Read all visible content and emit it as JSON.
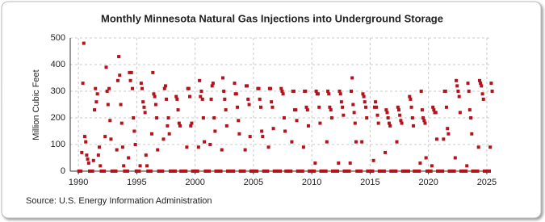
{
  "chart_data": {
    "type": "scatter",
    "title": "Monthly Minnesota Natural Gas Injections into Underground Storage",
    "y_label": "Million Cubic Feet",
    "source": "Source: U.S. Energy Information Administration",
    "color": "#b5121b",
    "grid": true,
    "xlim": [
      1989.3,
      2025.35
    ],
    "xticks": [
      1990,
      1995,
      2000,
      2005,
      2010,
      2015,
      2020,
      2025
    ],
    "ylim": [
      0,
      500
    ],
    "yticks": [
      0,
      100,
      200,
      300,
      400,
      500
    ],
    "x": [
      1990.04,
      1990.13,
      1990.21,
      1990.29,
      1990.38,
      1990.46,
      1990.54,
      1990.63,
      1990.71,
      1990.79,
      1990.88,
      1990.96,
      1991.04,
      1991.13,
      1991.21,
      1991.29,
      1991.38,
      1991.46,
      1991.54,
      1991.63,
      1991.71,
      1991.79,
      1991.88,
      1991.96,
      1992.04,
      1992.13,
      1992.21,
      1992.29,
      1992.38,
      1992.46,
      1992.54,
      1992.63,
      1992.71,
      1992.79,
      1992.88,
      1992.96,
      1993.04,
      1993.13,
      1993.21,
      1993.29,
      1993.38,
      1993.46,
      1993.54,
      1993.63,
      1993.71,
      1993.79,
      1993.88,
      1993.96,
      1994.04,
      1994.13,
      1994.21,
      1994.29,
      1994.38,
      1994.46,
      1994.54,
      1994.63,
      1994.71,
      1994.79,
      1994.88,
      1994.96,
      1995.04,
      1995.13,
      1995.21,
      1995.29,
      1995.38,
      1995.46,
      1995.54,
      1995.63,
      1995.71,
      1995.79,
      1995.88,
      1995.96,
      1996.04,
      1996.13,
      1996.21,
      1996.29,
      1996.38,
      1996.46,
      1996.54,
      1996.63,
      1996.71,
      1996.79,
      1996.88,
      1996.96,
      1997.04,
      1997.13,
      1997.21,
      1997.29,
      1997.38,
      1997.46,
      1997.54,
      1997.63,
      1997.71,
      1997.79,
      1997.88,
      1997.96,
      1998.04,
      1998.13,
      1998.21,
      1998.29,
      1998.38,
      1998.46,
      1998.54,
      1998.63,
      1998.71,
      1998.79,
      1998.88,
      1998.96,
      1999.04,
      1999.13,
      1999.21,
      1999.29,
      1999.38,
      1999.46,
      1999.54,
      1999.63,
      1999.71,
      1999.79,
      1999.88,
      1999.96,
      2000.04,
      2000.13,
      2000.21,
      2000.29,
      2000.38,
      2000.46,
      2000.54,
      2000.63,
      2000.71,
      2000.79,
      2000.88,
      2000.96,
      2001.04,
      2001.13,
      2001.21,
      2001.29,
      2001.38,
      2001.46,
      2001.54,
      2001.63,
      2001.71,
      2001.79,
      2001.88,
      2001.96,
      2002.04,
      2002.13,
      2002.21,
      2002.29,
      2002.38,
      2002.46,
      2002.54,
      2002.63,
      2002.71,
      2002.79,
      2002.88,
      2002.96,
      2003.04,
      2003.13,
      2003.21,
      2003.29,
      2003.38,
      2003.46,
      2003.54,
      2003.63,
      2003.71,
      2003.79,
      2003.88,
      2003.96,
      2004.04,
      2004.13,
      2004.21,
      2004.29,
      2004.38,
      2004.46,
      2004.54,
      2004.63,
      2004.71,
      2004.79,
      2004.88,
      2004.96,
      2005.04,
      2005.13,
      2005.21,
      2005.29,
      2005.38,
      2005.46,
      2005.54,
      2005.63,
      2005.71,
      2005.79,
      2005.88,
      2005.96,
      2006.04,
      2006.13,
      2006.21,
      2006.29,
      2006.38,
      2006.46,
      2006.54,
      2006.63,
      2006.71,
      2006.79,
      2006.88,
      2006.96,
      2007.04,
      2007.13,
      2007.21,
      2007.29,
      2007.38,
      2007.46,
      2007.54,
      2007.63,
      2007.71,
      2007.79,
      2007.88,
      2007.96,
      2008.04,
      2008.13,
      2008.21,
      2008.29,
      2008.38,
      2008.46,
      2008.54,
      2008.63,
      2008.71,
      2008.79,
      2008.88,
      2008.96,
      2009.04,
      2009.13,
      2009.21,
      2009.29,
      2009.38,
      2009.46,
      2009.54,
      2009.63,
      2009.71,
      2009.79,
      2009.88,
      2009.96,
      2010.04,
      2010.13,
      2010.21,
      2010.29,
      2010.38,
      2010.46,
      2010.54,
      2010.63,
      2010.71,
      2010.79,
      2010.88,
      2010.96,
      2011.04,
      2011.13,
      2011.21,
      2011.29,
      2011.38,
      2011.46,
      2011.54,
      2011.63,
      2011.71,
      2011.79,
      2011.88,
      2011.96,
      2012.04,
      2012.13,
      2012.21,
      2012.29,
      2012.38,
      2012.46,
      2012.54,
      2012.63,
      2012.71,
      2012.79,
      2012.88,
      2012.96,
      2013.04,
      2013.13,
      2013.21,
      2013.29,
      2013.38,
      2013.46,
      2013.54,
      2013.63,
      2013.71,
      2013.79,
      2013.88,
      2013.96,
      2014.04,
      2014.13,
      2014.21,
      2014.29,
      2014.38,
      2014.46,
      2014.54,
      2014.63,
      2014.71,
      2014.79,
      2014.88,
      2014.96,
      2015.04,
      2015.13,
      2015.21,
      2015.29,
      2015.38,
      2015.46,
      2015.54,
      2015.63,
      2015.71,
      2015.79,
      2015.88,
      2015.96,
      2016.04,
      2016.13,
      2016.21,
      2016.29,
      2016.38,
      2016.46,
      2016.54,
      2016.63,
      2016.71,
      2016.79,
      2016.88,
      2016.96,
      2017.04,
      2017.13,
      2017.21,
      2017.29,
      2017.38,
      2017.46,
      2017.54,
      2017.63,
      2017.71,
      2017.79,
      2017.88,
      2017.96,
      2018.04,
      2018.13,
      2018.21,
      2018.29,
      2018.38,
      2018.46,
      2018.54,
      2018.63,
      2018.71,
      2018.79,
      2018.88,
      2018.96,
      2019.04,
      2019.13,
      2019.21,
      2019.29,
      2019.38,
      2019.46,
      2019.54,
      2019.63,
      2019.71,
      2019.79,
      2019.88,
      2019.96,
      2020.04,
      2020.13,
      2020.21,
      2020.29,
      2020.38,
      2020.46,
      2020.54,
      2020.63,
      2020.71,
      2020.79,
      2020.88,
      2020.96,
      2021.04,
      2021.13,
      2021.21,
      2021.29,
      2021.38,
      2021.46,
      2021.54,
      2021.63,
      2021.71,
      2021.79,
      2021.88,
      2021.96,
      2022.04,
      2022.13,
      2022.21,
      2022.29,
      2022.38,
      2022.46,
      2022.54,
      2022.63,
      2022.71,
      2022.79,
      2022.88,
      2022.96,
      2023.04,
      2023.13,
      2023.21,
      2023.29,
      2023.38,
      2023.46,
      2023.54,
      2023.63,
      2023.71,
      2023.79,
      2023.88,
      2023.96,
      2024.04,
      2024.13,
      2024.21,
      2024.29,
      2024.38,
      2024.46,
      2024.54,
      2024.63,
      2024.71,
      2024.79,
      2024.88,
      2024.96,
      2025.04,
      2025.13,
      2025.21,
      2025.29,
      2025.38,
      2025.46
    ],
    "values": [
      0,
      0,
      0,
      70,
      330,
      480,
      130,
      110,
      60,
      45,
      30,
      0,
      0,
      0,
      0,
      40,
      230,
      310,
      260,
      290,
      60,
      90,
      20,
      0,
      0,
      0,
      0,
      130,
      390,
      300,
      250,
      310,
      190,
      120,
      0,
      0,
      0,
      0,
      0,
      80,
      340,
      430,
      360,
      250,
      180,
      90,
      20,
      0,
      0,
      0,
      0,
      50,
      370,
      340,
      370,
      310,
      200,
      150,
      100,
      0,
      0,
      0,
      0,
      20,
      330,
      310,
      260,
      240,
      220,
      60,
      20,
      0,
      0,
      0,
      0,
      140,
      370,
      290,
      280,
      250,
      200,
      80,
      0,
      0,
      0,
      0,
      0,
      120,
      310,
      320,
      270,
      170,
      200,
      140,
      0,
      0,
      0,
      0,
      0,
      0,
      280,
      270,
      230,
      180,
      170,
      0,
      0,
      0,
      0,
      0,
      0,
      90,
      310,
      310,
      280,
      170,
      180,
      0,
      0,
      0,
      0,
      0,
      0,
      90,
      340,
      280,
      300,
      270,
      200,
      110,
      0,
      0,
      0,
      0,
      0,
      100,
      270,
      320,
      330,
      200,
      150,
      0,
      0,
      0,
      0,
      0,
      0,
      80,
      350,
      300,
      270,
      230,
      170,
      0,
      0,
      0,
      0,
      0,
      0,
      0,
      330,
      290,
      290,
      240,
      190,
      140,
      0,
      0,
      0,
      0,
      0,
      80,
      320,
      320,
      270,
      250,
      130,
      0,
      0,
      0,
      0,
      0,
      0,
      0,
      310,
      310,
      270,
      240,
      150,
      130,
      0,
      0,
      0,
      0,
      0,
      90,
      310,
      310,
      260,
      240,
      160,
      0,
      0,
      0,
      0,
      0,
      0,
      0,
      310,
      300,
      290,
      200,
      150,
      0,
      0,
      0,
      0,
      0,
      0,
      110,
      300,
      300,
      230,
      230,
      190,
      0,
      0,
      0,
      0,
      0,
      0,
      90,
      300,
      300,
      240,
      230,
      170,
      0,
      0,
      0,
      0,
      0,
      0,
      30,
      300,
      290,
      290,
      240,
      180,
      0,
      0,
      0,
      0,
      0,
      0,
      110,
      300,
      290,
      240,
      230,
      200,
      0,
      0,
      0,
      0,
      0,
      0,
      30,
      300,
      290,
      260,
      240,
      210,
      0,
      0,
      0,
      0,
      0,
      0,
      30,
      300,
      350,
      250,
      220,
      180,
      110,
      0,
      0,
      0,
      0,
      0,
      110,
      290,
      280,
      260,
      240,
      200,
      0,
      0,
      0,
      0,
      0,
      0,
      40,
      240,
      260,
      240,
      210,
      180,
      0,
      0,
      0,
      0,
      0,
      0,
      70,
      230,
      220,
      200,
      180,
      170,
      0,
      0,
      0,
      0,
      0,
      0,
      110,
      240,
      230,
      210,
      190,
      180,
      0,
      0,
      0,
      0,
      0,
      0,
      0,
      280,
      270,
      240,
      200,
      170,
      0,
      0,
      0,
      0,
      0,
      0,
      30,
      300,
      230,
      200,
      190,
      180,
      50,
      0,
      0,
      0,
      0,
      0,
      20,
      240,
      230,
      220,
      220,
      120,
      0,
      0,
      0,
      0,
      0,
      0,
      120,
      300,
      300,
      240,
      160,
      140,
      0,
      0,
      0,
      0,
      0,
      0,
      50,
      340,
      320,
      300,
      280,
      220,
      0,
      0,
      0,
      0,
      0,
      0,
      20,
      330,
      300,
      230,
      200,
      140,
      0,
      0,
      0,
      0,
      0,
      0,
      90,
      340,
      330,
      320,
      290,
      270,
      0,
      0,
      0,
      0,
      0,
      0,
      90,
      330,
      300
    ]
  }
}
